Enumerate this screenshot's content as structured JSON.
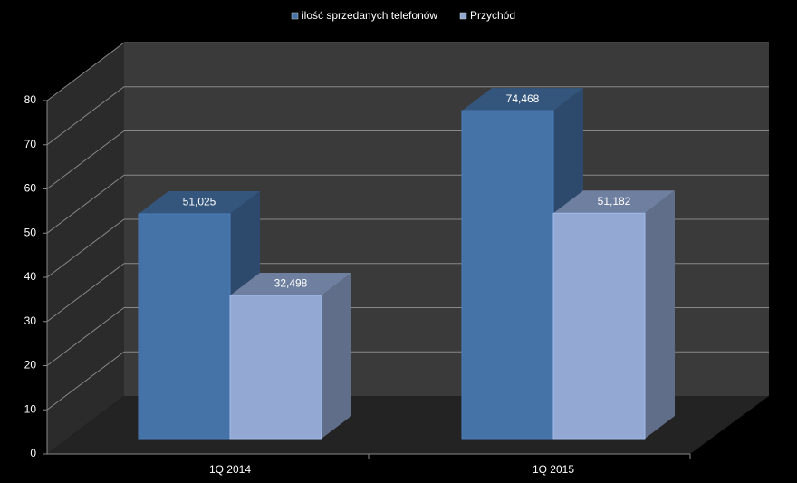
{
  "chart_data": {
    "type": "bar3d",
    "categories": [
      "1Q 2014",
      "1Q 2015"
    ],
    "series": [
      {
        "name": "ilość sprzedanych telefonów",
        "color": "#4572a7",
        "values": [
          51.025,
          74.468
        ],
        "value_labels": [
          "51,025",
          "74,468"
        ]
      },
      {
        "name": "Przychód",
        "color": "#93a9d4",
        "values": [
          32.498,
          51.182
        ],
        "value_labels": [
          "32,498",
          "51,182"
        ]
      }
    ],
    "ylim": [
      0,
      80
    ],
    "yticks": [
      0,
      10,
      20,
      30,
      40,
      50,
      60,
      70,
      80
    ],
    "grid": true,
    "legend": "top"
  }
}
